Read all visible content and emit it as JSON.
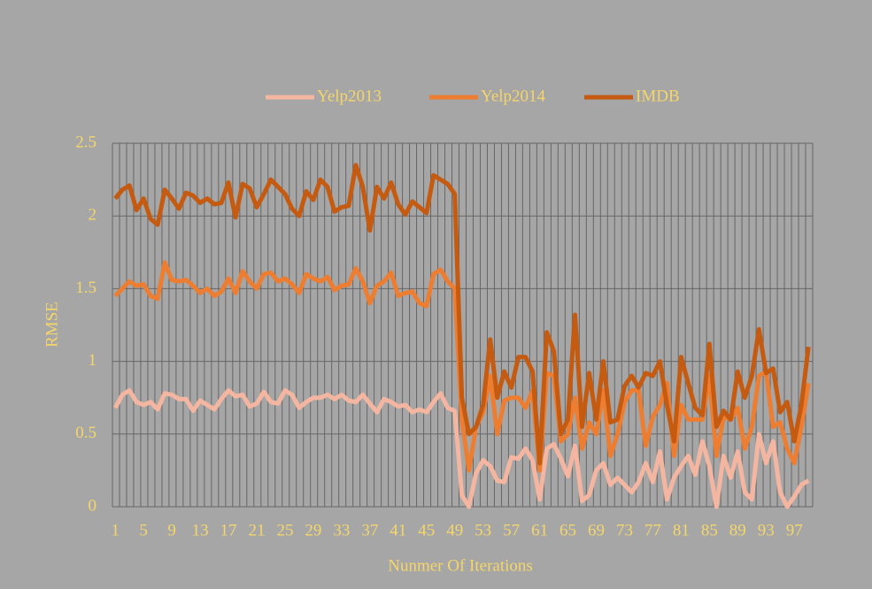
{
  "chart_data": {
    "type": "line",
    "xlabel": "Nunmer Of Iterations",
    "ylabel": "RMSE",
    "categories": [
      "1",
      null,
      null,
      null,
      "5",
      null,
      null,
      null,
      "9",
      null,
      null,
      null,
      "13",
      null,
      null,
      null,
      "17",
      null,
      null,
      null,
      "21",
      null,
      null,
      null,
      "25",
      null,
      null,
      null,
      "29",
      null,
      null,
      null,
      "33",
      null,
      null,
      null,
      "37",
      null,
      null,
      null,
      "41",
      null,
      null,
      null,
      "45",
      null,
      null,
      null,
      "49",
      null,
      null,
      null,
      "53",
      null,
      null,
      null,
      "57",
      null,
      null,
      null,
      "61",
      null,
      null,
      null,
      "65",
      null,
      null,
      null,
      "69",
      null,
      null,
      null,
      "73",
      null,
      null,
      null,
      "77",
      null,
      null,
      null,
      "81",
      null,
      null,
      null,
      "85",
      null,
      null,
      null,
      "89",
      null,
      null,
      null,
      "93",
      null,
      null,
      null,
      "97",
      null,
      null
    ],
    "ylim": [
      0,
      2.5
    ],
    "yticks": [
      0,
      0.5,
      1,
      1.5,
      2,
      2.5
    ],
    "grid": true,
    "series": [
      {
        "name": "Yelp2013",
        "color": "#f4b6a0",
        "values": [
          0.68,
          0.77,
          0.8,
          0.72,
          0.7,
          0.72,
          0.67,
          0.78,
          0.77,
          0.74,
          0.74,
          0.66,
          0.73,
          0.7,
          0.67,
          0.74,
          0.8,
          0.76,
          0.77,
          0.69,
          0.71,
          0.79,
          0.72,
          0.71,
          0.8,
          0.77,
          0.68,
          0.72,
          0.75,
          0.75,
          0.77,
          0.74,
          0.77,
          0.73,
          0.72,
          0.77,
          0.71,
          0.65,
          0.74,
          0.72,
          0.69,
          0.7,
          0.65,
          0.67,
          0.65,
          0.72,
          0.78,
          0.68,
          0.66,
          0.08,
          0.0,
          0.23,
          0.32,
          0.28,
          0.18,
          0.17,
          0.34,
          0.33,
          0.4,
          0.32,
          0.05,
          0.4,
          0.43,
          0.33,
          0.21,
          0.42,
          0.04,
          0.08,
          0.25,
          0.3,
          0.15,
          0.2,
          0.15,
          0.1,
          0.17,
          0.3,
          0.17,
          0.38,
          0.05,
          0.2,
          0.28,
          0.35,
          0.22,
          0.45,
          0.28,
          0.0,
          0.35,
          0.2,
          0.38,
          0.1,
          0.05,
          0.5,
          0.3,
          0.45,
          0.1,
          0.0,
          0.07,
          0.15,
          0.18
        ]
      },
      {
        "name": "Yelp2014",
        "color": "#ed7d31",
        "values": [
          1.45,
          1.5,
          1.55,
          1.52,
          1.53,
          1.45,
          1.43,
          1.68,
          1.56,
          1.55,
          1.56,
          1.52,
          1.47,
          1.5,
          1.45,
          1.48,
          1.57,
          1.47,
          1.62,
          1.55,
          1.5,
          1.6,
          1.61,
          1.55,
          1.57,
          1.53,
          1.47,
          1.6,
          1.57,
          1.55,
          1.58,
          1.49,
          1.52,
          1.53,
          1.64,
          1.55,
          1.4,
          1.52,
          1.55,
          1.61,
          1.45,
          1.47,
          1.48,
          1.4,
          1.38,
          1.6,
          1.63,
          1.55,
          1.5,
          0.6,
          0.25,
          0.55,
          0.65,
          0.9,
          0.5,
          0.73,
          0.75,
          0.75,
          0.68,
          0.8,
          0.25,
          0.92,
          0.9,
          0.45,
          0.5,
          0.75,
          0.4,
          0.58,
          0.5,
          0.8,
          0.35,
          0.5,
          0.72,
          0.8,
          0.8,
          0.42,
          0.62,
          0.7,
          0.85,
          0.35,
          0.7,
          0.6,
          0.6,
          0.6,
          0.9,
          0.35,
          0.62,
          0.6,
          0.68,
          0.4,
          0.55,
          0.9,
          0.93,
          0.55,
          0.58,
          0.4,
          0.3,
          0.55,
          0.85
        ]
      },
      {
        "name": "IMDB",
        "color": "#c55a11",
        "values": [
          2.12,
          2.18,
          2.21,
          2.04,
          2.12,
          1.98,
          1.94,
          2.18,
          2.12,
          2.05,
          2.16,
          2.14,
          2.09,
          2.12,
          2.08,
          2.09,
          2.23,
          1.99,
          2.22,
          2.19,
          2.06,
          2.15,
          2.25,
          2.2,
          2.15,
          2.05,
          2.0,
          2.17,
          2.11,
          2.25,
          2.2,
          2.03,
          2.06,
          2.07,
          2.35,
          2.2,
          1.9,
          2.2,
          2.12,
          2.23,
          2.08,
          2.01,
          2.1,
          2.06,
          2.02,
          2.28,
          2.25,
          2.22,
          2.15,
          0.75,
          0.5,
          0.55,
          0.7,
          1.15,
          0.75,
          0.93,
          0.82,
          1.03,
          1.03,
          0.93,
          0.3,
          1.2,
          1.07,
          0.5,
          0.6,
          1.32,
          0.55,
          0.92,
          0.6,
          1.0,
          0.58,
          0.6,
          0.83,
          0.9,
          0.82,
          0.92,
          0.9,
          1.0,
          0.7,
          0.45,
          1.03,
          0.85,
          0.68,
          0.63,
          1.12,
          0.55,
          0.66,
          0.6,
          0.93,
          0.75,
          0.9,
          1.22,
          0.92,
          0.95,
          0.65,
          0.72,
          0.45,
          0.7,
          1.1
        ]
      }
    ]
  }
}
